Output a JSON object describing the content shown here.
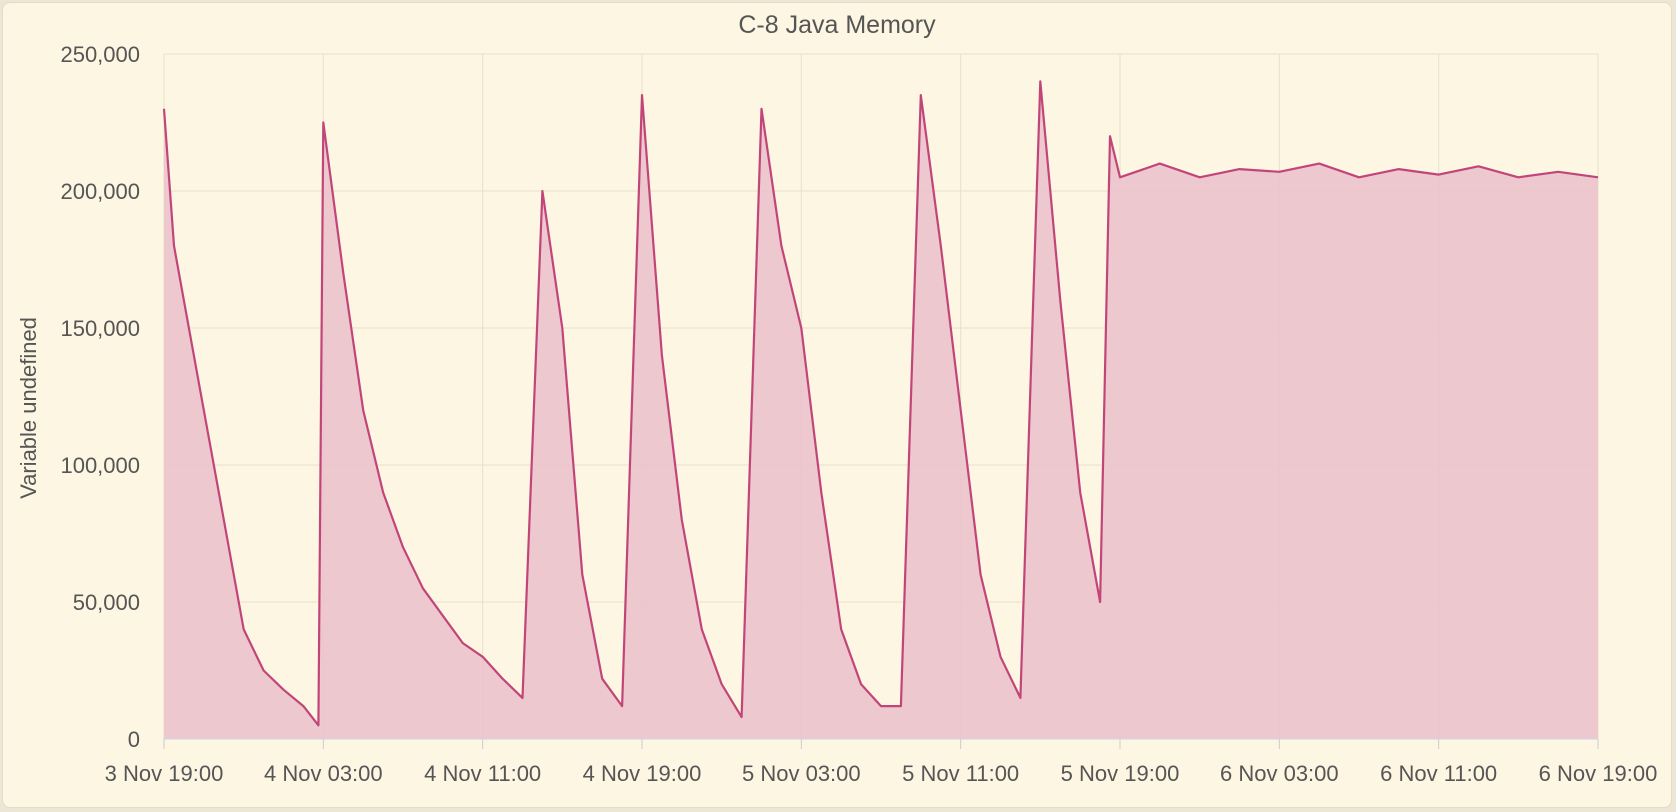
{
  "chart_data": {
    "type": "area",
    "title": "C-8 Java Memory",
    "xlabel": "",
    "ylabel": "Variable undefined",
    "ylim": [
      0,
      250000
    ],
    "yticks": [
      0,
      50000,
      100000,
      150000,
      200000,
      250000
    ],
    "ytick_labels": [
      "0",
      "50,000",
      "100,000",
      "150,000",
      "200,000",
      "250,000"
    ],
    "xlim": [
      "2023-11-03T19:00",
      "2023-11-06T19:00"
    ],
    "xticks": [
      "2023-11-03T19:00",
      "2023-11-04T03:00",
      "2023-11-04T11:00",
      "2023-11-04T19:00",
      "2023-11-05T03:00",
      "2023-11-05T11:00",
      "2023-11-05T19:00",
      "2023-11-06T03:00",
      "2023-11-06T11:00",
      "2023-11-06T19:00"
    ],
    "xtick_labels": [
      "3 Nov 19:00",
      "4 Nov 03:00",
      "4 Nov 11:00",
      "4 Nov 19:00",
      "5 Nov 03:00",
      "5 Nov 11:00",
      "5 Nov 19:00",
      "6 Nov 03:00",
      "6 Nov 11:00",
      "6 Nov 19:00"
    ],
    "grid": true,
    "legend": "none",
    "line_color": "#c2457a",
    "fill_color": "#ebc3cb",
    "series": [
      {
        "x": [
          "2023-11-03T19:00",
          "2023-11-03T19:30",
          "2023-11-03T20:00",
          "2023-11-03T21:00",
          "2023-11-03T22:00",
          "2023-11-03T23:00",
          "2023-11-04T00:00",
          "2023-11-04T01:00",
          "2023-11-04T02:00",
          "2023-11-04T02:45",
          "2023-11-04T03:00",
          "2023-11-04T04:00",
          "2023-11-04T05:00",
          "2023-11-04T06:00",
          "2023-11-04T07:00",
          "2023-11-04T08:00",
          "2023-11-04T09:00",
          "2023-11-04T10:00",
          "2023-11-04T11:00",
          "2023-11-04T12:00",
          "2023-11-04T13:00",
          "2023-11-04T14:00",
          "2023-11-04T15:00",
          "2023-11-04T16:00",
          "2023-11-04T17:00",
          "2023-11-04T18:00",
          "2023-11-04T19:00",
          "2023-11-04T20:00",
          "2023-11-04T21:00",
          "2023-11-04T22:00",
          "2023-11-04T23:00",
          "2023-11-05T00:00",
          "2023-11-05T01:00",
          "2023-11-05T02:00",
          "2023-11-05T03:00",
          "2023-11-05T04:00",
          "2023-11-05T05:00",
          "2023-11-05T06:00",
          "2023-11-05T07:00",
          "2023-11-05T08:00",
          "2023-11-05T09:00",
          "2023-11-05T10:00",
          "2023-11-05T11:00",
          "2023-11-05T12:00",
          "2023-11-05T13:00",
          "2023-11-05T14:00",
          "2023-11-05T15:00",
          "2023-11-05T16:00",
          "2023-11-05T17:00",
          "2023-11-05T18:00",
          "2023-11-05T18:30",
          "2023-11-05T19:00",
          "2023-11-05T21:00",
          "2023-11-05T23:00",
          "2023-11-06T01:00",
          "2023-11-06T03:00",
          "2023-11-06T05:00",
          "2023-11-06T07:00",
          "2023-11-06T09:00",
          "2023-11-06T11:00",
          "2023-11-06T13:00",
          "2023-11-06T15:00",
          "2023-11-06T17:00",
          "2023-11-06T19:00"
        ],
        "y": [
          230000,
          180000,
          160000,
          120000,
          80000,
          40000,
          25000,
          18000,
          12000,
          5000,
          225000,
          170000,
          120000,
          90000,
          70000,
          55000,
          45000,
          35000,
          30000,
          22000,
          15000,
          200000,
          150000,
          60000,
          22000,
          12000,
          235000,
          140000,
          80000,
          40000,
          20000,
          8000,
          230000,
          180000,
          150000,
          90000,
          40000,
          20000,
          12000,
          12000,
          235000,
          180000,
          120000,
          60000,
          30000,
          15000,
          240000,
          160000,
          90000,
          50000,
          220000,
          205000,
          210000,
          205000,
          208000,
          207000,
          210000,
          205000,
          208000,
          206000,
          209000,
          205000,
          207000,
          205000
        ]
      }
    ]
  }
}
